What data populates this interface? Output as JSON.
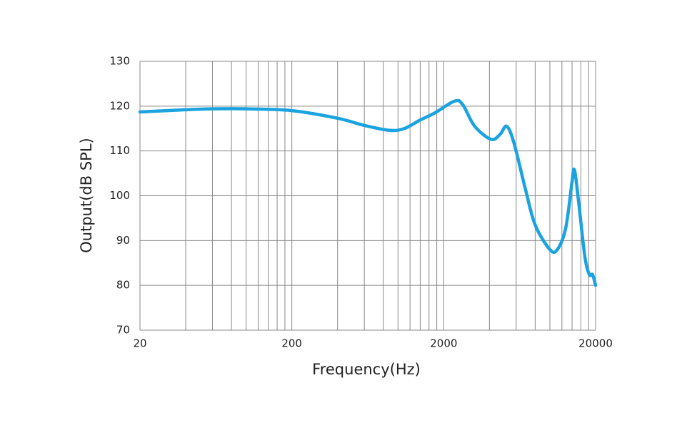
{
  "chart_data": {
    "type": "line",
    "x_label": "Frequency(Hz)",
    "y_label": "Output(dB SPL)",
    "xscale": "log",
    "xlim": [
      20,
      20000
    ],
    "ylim": [
      70,
      130
    ],
    "xticks": [
      20,
      200,
      2000,
      20000
    ],
    "xminor_ticks": [
      40,
      60,
      80,
      100,
      120,
      140,
      160,
      180,
      400,
      600,
      800,
      1000,
      1200,
      1400,
      1600,
      1800,
      4000,
      6000,
      8000,
      10000,
      12000,
      14000,
      16000,
      18000
    ],
    "yticks": [
      70,
      80,
      90,
      100,
      110,
      120,
      130
    ],
    "grid": true,
    "series": [
      {
        "color": "#1aa3df",
        "x": [
          20,
          40,
          60,
          100,
          200,
          400,
          600,
          880,
          1100,
          1400,
          1750,
          2350,
          2660,
          3200,
          4100,
          4700,
          5200,
          5800,
          6900,
          8000,
          10000,
          11200,
          12700,
          13900,
          14500,
          15500,
          17000,
          18200,
          19100,
          20000
        ],
        "values": [
          118.7,
          119.2,
          119.4,
          119.4,
          119.0,
          117.3,
          115.7,
          114.6,
          115.0,
          116.9,
          118.5,
          121.1,
          120.4,
          115.5,
          112.6,
          113.7,
          115.5,
          111.8,
          101.5,
          93.5,
          88.0,
          88.0,
          92.7,
          102.3,
          105.8,
          98.3,
          86.4,
          82.4,
          82.4,
          80.0
        ]
      }
    ]
  }
}
